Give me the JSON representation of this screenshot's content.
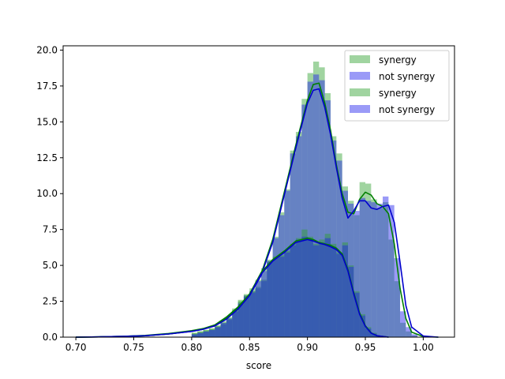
{
  "chart_data": {
    "type": "bar",
    "title": "",
    "xlabel": "score",
    "ylabel": "",
    "xlim": [
      0.689,
      1.027
    ],
    "ylim": [
      0,
      20.3
    ],
    "xticks": [
      "0.70",
      "0.75",
      "0.80",
      "0.85",
      "0.90",
      "0.95",
      "1.00"
    ],
    "xtick_values": [
      0.7,
      0.75,
      0.8,
      0.85,
      0.9,
      0.95,
      1.0
    ],
    "yticks": [
      "0.0",
      "2.5",
      "5.0",
      "7.5",
      "10.0",
      "12.5",
      "15.0",
      "17.5",
      "20.0"
    ],
    "ytick_values": [
      0,
      2.5,
      5.0,
      7.5,
      10.0,
      12.5,
      15.0,
      17.5,
      20.0
    ],
    "grid": false,
    "legend_position": "top-right",
    "legend": [
      {
        "label": "synergy",
        "color": "#2ca02c",
        "opacity": 0.45
      },
      {
        "label": "not synergy",
        "color": "#2020ee",
        "opacity": 0.45
      },
      {
        "label": "synergy",
        "color": "#2ca02c",
        "opacity": 0.45
      },
      {
        "label": "not synergy",
        "color": "#2020ee",
        "opacity": 0.45
      }
    ],
    "series": [
      {
        "name": "synergy",
        "kind": "histogram",
        "color": "#2ca02c",
        "bins": [
          0.8,
          0.805,
          0.81,
          0.815,
          0.82,
          0.825,
          0.83,
          0.835,
          0.84,
          0.845,
          0.85,
          0.855,
          0.86,
          0.865,
          0.87,
          0.875,
          0.88,
          0.885,
          0.89,
          0.895,
          0.9,
          0.905,
          0.91,
          0.915,
          0.92,
          0.925,
          0.93,
          0.935,
          0.94,
          0.945,
          0.95,
          0.955,
          0.96,
          0.965,
          0.97,
          0.975,
          0.98,
          0.985,
          0.99
        ],
        "values": [
          0.3,
          0.4,
          0.5,
          0.6,
          0.8,
          1.0,
          1.3,
          1.9,
          2.6,
          3.0,
          3.4,
          3.5,
          4.0,
          5.3,
          7.0,
          8.7,
          10.3,
          13.0,
          14.3,
          16.6,
          18.4,
          19.2,
          18.8,
          17.0,
          14.0,
          12.8,
          10.5,
          9.5,
          8.5,
          10.8,
          10.7,
          9.6,
          9.0,
          9.4,
          6.8,
          3.9,
          1.0,
          0.4,
          0.1
        ]
      },
      {
        "name": "not synergy",
        "kind": "histogram",
        "color": "#2020ee",
        "bins": [
          0.8,
          0.805,
          0.81,
          0.815,
          0.82,
          0.825,
          0.83,
          0.835,
          0.84,
          0.845,
          0.85,
          0.855,
          0.86,
          0.865,
          0.87,
          0.875,
          0.88,
          0.885,
          0.89,
          0.895,
          0.9,
          0.905,
          0.91,
          0.915,
          0.92,
          0.925,
          0.93,
          0.935,
          0.94,
          0.945,
          0.95,
          0.955,
          0.96,
          0.965,
          0.97,
          0.975,
          0.98,
          0.985,
          0.99
        ],
        "values": [
          0.2,
          0.3,
          0.4,
          0.5,
          0.7,
          0.9,
          1.2,
          1.8,
          2.4,
          2.9,
          3.2,
          3.4,
          3.9,
          5.2,
          6.9,
          8.5,
          10.2,
          12.8,
          14.0,
          16.2,
          17.8,
          18.3,
          17.9,
          16.5,
          13.7,
          12.3,
          10.2,
          9.3,
          8.8,
          9.7,
          9.5,
          9.4,
          9.3,
          9.8,
          9.2,
          5.5,
          1.8,
          0.7,
          0.2
        ]
      },
      {
        "name": "synergy",
        "kind": "histogram",
        "color": "#2ca02c",
        "bins": [
          0.8,
          0.805,
          0.81,
          0.815,
          0.82,
          0.825,
          0.83,
          0.835,
          0.84,
          0.845,
          0.85,
          0.855,
          0.86,
          0.865,
          0.87,
          0.875,
          0.88,
          0.885,
          0.89,
          0.895,
          0.9,
          0.905,
          0.91,
          0.915,
          0.92,
          0.925,
          0.93,
          0.935,
          0.94,
          0.945,
          0.95,
          0.955,
          0.96,
          0.965
        ],
        "values": [
          0.3,
          0.4,
          0.5,
          0.6,
          0.8,
          1.1,
          1.4,
          2.0,
          2.5,
          2.9,
          3.2,
          4.0,
          4.8,
          5.4,
          5.6,
          5.7,
          6.0,
          6.5,
          6.9,
          7.5,
          7.0,
          6.5,
          6.8,
          7.2,
          6.5,
          5.9,
          6.6,
          5.0,
          3.2,
          1.6,
          0.7,
          0.3,
          0.1,
          0.05
        ]
      },
      {
        "name": "not synergy",
        "kind": "histogram",
        "color": "#2020ee",
        "bins": [
          0.8,
          0.805,
          0.81,
          0.815,
          0.82,
          0.825,
          0.83,
          0.835,
          0.84,
          0.845,
          0.85,
          0.855,
          0.86,
          0.865,
          0.87,
          0.875,
          0.88,
          0.885,
          0.89,
          0.895,
          0.9,
          0.905,
          0.91,
          0.915,
          0.92,
          0.925,
          0.93,
          0.935,
          0.94,
          0.945,
          0.95,
          0.955,
          0.96,
          0.965
        ],
        "values": [
          0.2,
          0.3,
          0.4,
          0.5,
          0.7,
          1.0,
          1.3,
          1.8,
          2.3,
          2.8,
          3.1,
          3.9,
          4.6,
          5.3,
          5.5,
          5.6,
          5.9,
          6.4,
          6.8,
          7.0,
          6.8,
          6.4,
          6.6,
          6.9,
          6.3,
          5.8,
          6.4,
          4.9,
          3.1,
          1.5,
          0.6,
          0.25,
          0.1,
          0.05
        ]
      },
      {
        "name": "synergy",
        "kind": "kde",
        "color": "#008000",
        "x": [
          0.7,
          0.72,
          0.74,
          0.76,
          0.78,
          0.8,
          0.81,
          0.82,
          0.83,
          0.84,
          0.85,
          0.86,
          0.87,
          0.88,
          0.89,
          0.9,
          0.905,
          0.91,
          0.915,
          0.92,
          0.925,
          0.93,
          0.935,
          0.94,
          0.945,
          0.95,
          0.955,
          0.96,
          0.965,
          0.97,
          0.975,
          0.98,
          0.985,
          0.99,
          1.0,
          1.013
        ],
        "y": [
          0.0,
          0.02,
          0.05,
          0.12,
          0.25,
          0.45,
          0.6,
          0.85,
          1.4,
          2.1,
          3.0,
          4.4,
          6.8,
          10.1,
          13.4,
          16.5,
          17.6,
          17.7,
          16.3,
          14.4,
          12.0,
          10.0,
          8.7,
          8.6,
          9.6,
          10.1,
          9.9,
          9.3,
          9.1,
          8.6,
          6.5,
          3.4,
          1.3,
          0.35,
          0.04,
          0.0
        ]
      },
      {
        "name": "not synergy",
        "kind": "kde",
        "color": "#0000cc",
        "x": [
          0.7,
          0.72,
          0.74,
          0.76,
          0.78,
          0.8,
          0.81,
          0.82,
          0.83,
          0.84,
          0.85,
          0.86,
          0.87,
          0.88,
          0.89,
          0.9,
          0.905,
          0.91,
          0.915,
          0.92,
          0.925,
          0.93,
          0.935,
          0.94,
          0.945,
          0.95,
          0.955,
          0.96,
          0.965,
          0.97,
          0.975,
          0.98,
          0.985,
          0.99,
          1.0,
          1.013
        ],
        "y": [
          0.0,
          0.02,
          0.05,
          0.1,
          0.22,
          0.4,
          0.55,
          0.8,
          1.3,
          2.0,
          2.9,
          4.3,
          6.6,
          9.9,
          13.2,
          16.3,
          17.2,
          17.3,
          16.0,
          14.1,
          11.8,
          9.7,
          8.3,
          8.8,
          9.5,
          9.5,
          9.0,
          8.9,
          9.1,
          9.2,
          8.0,
          5.2,
          2.2,
          0.7,
          0.08,
          0.0
        ]
      },
      {
        "name": "synergy",
        "kind": "kde",
        "color": "#008000",
        "x": [
          0.7,
          0.72,
          0.74,
          0.76,
          0.78,
          0.8,
          0.81,
          0.82,
          0.83,
          0.84,
          0.85,
          0.86,
          0.87,
          0.88,
          0.89,
          0.9,
          0.905,
          0.91,
          0.915,
          0.92,
          0.925,
          0.93,
          0.935,
          0.94,
          0.945,
          0.95,
          0.955,
          0.96,
          0.97
        ],
        "y": [
          0.0,
          0.02,
          0.05,
          0.1,
          0.22,
          0.42,
          0.58,
          0.8,
          1.3,
          2.0,
          3.0,
          4.5,
          5.4,
          6.0,
          6.7,
          6.9,
          6.8,
          6.6,
          6.5,
          6.4,
          6.2,
          5.8,
          4.7,
          3.1,
          1.7,
          0.8,
          0.3,
          0.1,
          0.0
        ]
      },
      {
        "name": "not synergy",
        "kind": "kde",
        "color": "#0000cc",
        "x": [
          0.7,
          0.72,
          0.74,
          0.76,
          0.78,
          0.8,
          0.81,
          0.82,
          0.83,
          0.84,
          0.85,
          0.86,
          0.87,
          0.88,
          0.89,
          0.9,
          0.905,
          0.91,
          0.915,
          0.92,
          0.925,
          0.93,
          0.935,
          0.94,
          0.945,
          0.95,
          0.955,
          0.96,
          0.97
        ],
        "y": [
          0.0,
          0.02,
          0.05,
          0.1,
          0.22,
          0.4,
          0.55,
          0.78,
          1.25,
          1.95,
          2.9,
          4.4,
          5.3,
          5.9,
          6.6,
          6.8,
          6.7,
          6.55,
          6.45,
          6.3,
          6.1,
          5.7,
          4.6,
          3.0,
          1.6,
          0.75,
          0.28,
          0.1,
          0.0
        ]
      }
    ]
  }
}
